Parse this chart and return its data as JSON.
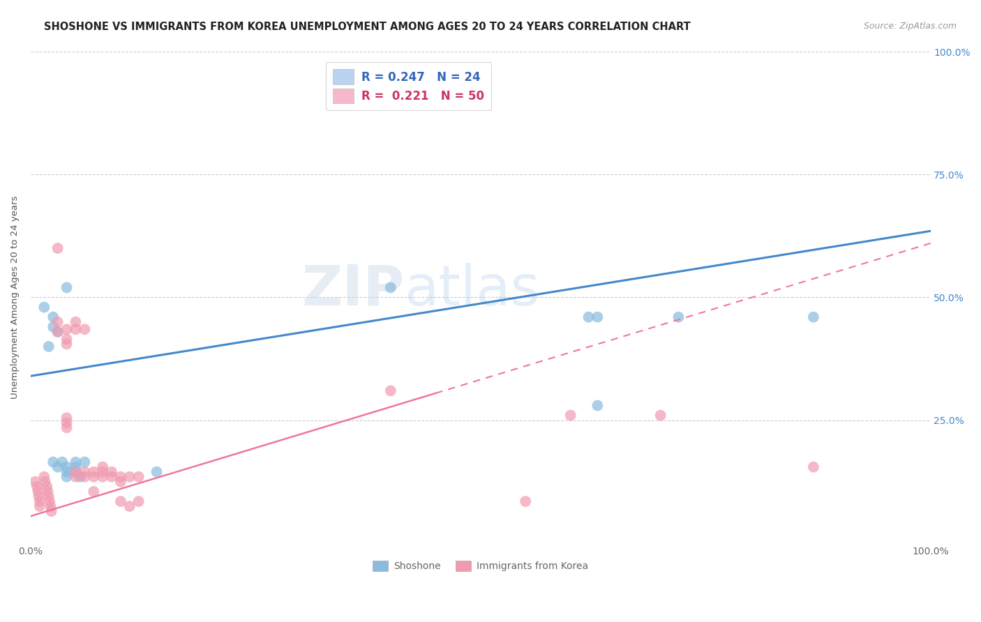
{
  "title": "SHOSHONE VS IMMIGRANTS FROM KOREA UNEMPLOYMENT AMONG AGES 20 TO 24 YEARS CORRELATION CHART",
  "source": "Source: ZipAtlas.com",
  "ylabel": "Unemployment Among Ages 20 to 24 years",
  "xlim": [
    0.0,
    1.0
  ],
  "ylim": [
    0.0,
    1.0
  ],
  "xtick_positions": [
    0.0,
    1.0
  ],
  "xtick_labels": [
    "0.0%",
    "100.0%"
  ],
  "ytick_positions": [
    0.0,
    0.25,
    0.5,
    0.75,
    1.0
  ],
  "right_ytick_labels": [
    "100.0%",
    "75.0%",
    "50.0%",
    "25.0%",
    ""
  ],
  "legend_entries": [
    {
      "label": "R = 0.247   N = 24",
      "color": "#b8d4f0",
      "text_color": "#3366bb"
    },
    {
      "label": "R =  0.221   N = 50",
      "color": "#f8b8cc",
      "text_color": "#cc3366"
    }
  ],
  "shoshone_color": "#88bbdd",
  "korea_color": "#f09ab0",
  "shoshone_line_color": "#4488cc",
  "korea_line_color": "#ee7799",
  "background_color": "#ffffff",
  "grid_color": "#cccccc",
  "watermark_zip": "ZIP",
  "watermark_atlas": "atlas",
  "shoshone_points": [
    [
      0.015,
      0.48
    ],
    [
      0.025,
      0.46
    ],
    [
      0.025,
      0.44
    ],
    [
      0.03,
      0.43
    ],
    [
      0.02,
      0.4
    ],
    [
      0.025,
      0.165
    ],
    [
      0.03,
      0.155
    ],
    [
      0.035,
      0.165
    ],
    [
      0.04,
      0.52
    ],
    [
      0.04,
      0.155
    ],
    [
      0.04,
      0.145
    ],
    [
      0.04,
      0.135
    ],
    [
      0.05,
      0.165
    ],
    [
      0.05,
      0.155
    ],
    [
      0.05,
      0.145
    ],
    [
      0.055,
      0.135
    ],
    [
      0.06,
      0.165
    ],
    [
      0.4,
      0.52
    ],
    [
      0.62,
      0.46
    ],
    [
      0.63,
      0.46
    ],
    [
      0.72,
      0.46
    ],
    [
      0.87,
      0.46
    ],
    [
      0.63,
      0.28
    ],
    [
      0.14,
      0.145
    ]
  ],
  "korea_points": [
    [
      0.005,
      0.125
    ],
    [
      0.007,
      0.115
    ],
    [
      0.008,
      0.105
    ],
    [
      0.009,
      0.095
    ],
    [
      0.01,
      0.085
    ],
    [
      0.01,
      0.075
    ],
    [
      0.015,
      0.135
    ],
    [
      0.016,
      0.125
    ],
    [
      0.018,
      0.115
    ],
    [
      0.019,
      0.105
    ],
    [
      0.02,
      0.095
    ],
    [
      0.021,
      0.085
    ],
    [
      0.022,
      0.075
    ],
    [
      0.023,
      0.065
    ],
    [
      0.03,
      0.6
    ],
    [
      0.03,
      0.45
    ],
    [
      0.03,
      0.43
    ],
    [
      0.04,
      0.435
    ],
    [
      0.04,
      0.415
    ],
    [
      0.04,
      0.405
    ],
    [
      0.04,
      0.255
    ],
    [
      0.04,
      0.245
    ],
    [
      0.04,
      0.235
    ],
    [
      0.05,
      0.45
    ],
    [
      0.05,
      0.435
    ],
    [
      0.05,
      0.145
    ],
    [
      0.05,
      0.135
    ],
    [
      0.06,
      0.435
    ],
    [
      0.06,
      0.145
    ],
    [
      0.06,
      0.135
    ],
    [
      0.07,
      0.145
    ],
    [
      0.07,
      0.135
    ],
    [
      0.07,
      0.105
    ],
    [
      0.08,
      0.155
    ],
    [
      0.08,
      0.145
    ],
    [
      0.08,
      0.135
    ],
    [
      0.09,
      0.145
    ],
    [
      0.09,
      0.135
    ],
    [
      0.1,
      0.135
    ],
    [
      0.1,
      0.125
    ],
    [
      0.1,
      0.085
    ],
    [
      0.11,
      0.135
    ],
    [
      0.11,
      0.075
    ],
    [
      0.12,
      0.135
    ],
    [
      0.12,
      0.085
    ],
    [
      0.4,
      0.31
    ],
    [
      0.55,
      0.085
    ],
    [
      0.6,
      0.26
    ],
    [
      0.7,
      0.26
    ],
    [
      0.87,
      0.155
    ]
  ],
  "shoshone_line": {
    "x0": 0.0,
    "y0": 0.34,
    "x1": 1.0,
    "y1": 0.635
  },
  "korea_line_solid": {
    "x0": 0.0,
    "y0": 0.055,
    "x1": 0.45,
    "y1": 0.305
  },
  "korea_line_dashed": {
    "x0": 0.45,
    "y0": 0.305,
    "x1": 1.0,
    "y1": 0.61
  }
}
